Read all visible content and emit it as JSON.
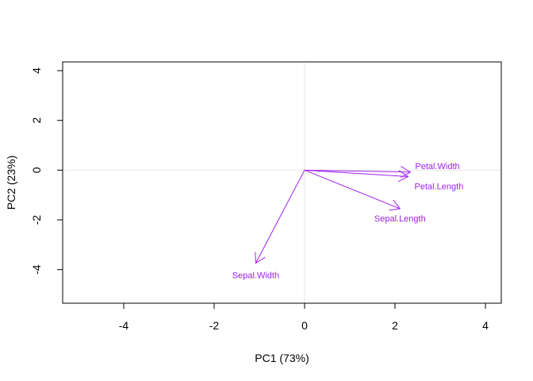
{
  "chart_data": {
    "type": "biplot",
    "xlabel": "PC1 (73%)",
    "ylabel": "PC2 (23%)",
    "xlim": [
      -5.35,
      4.35
    ],
    "ylim": [
      -5.35,
      4.35
    ],
    "x_ticks": [
      -4,
      -2,
      0,
      2,
      4
    ],
    "y_ticks": [
      -4,
      -2,
      0,
      2,
      4
    ],
    "reference_lines": {
      "x": 0,
      "y": 0,
      "color": "#e6e6e6"
    },
    "arrow_color": "#a020f0",
    "arrows": [
      {
        "label": "Petal.Width",
        "x": 2.34,
        "y": -0.08
      },
      {
        "label": "Petal.Length",
        "x": 2.29,
        "y": -0.26
      },
      {
        "label": "Sepal.Length",
        "x": 2.11,
        "y": -1.55
      },
      {
        "label": "Sepal.Width",
        "x": -1.08,
        "y": -3.74
      }
    ]
  }
}
